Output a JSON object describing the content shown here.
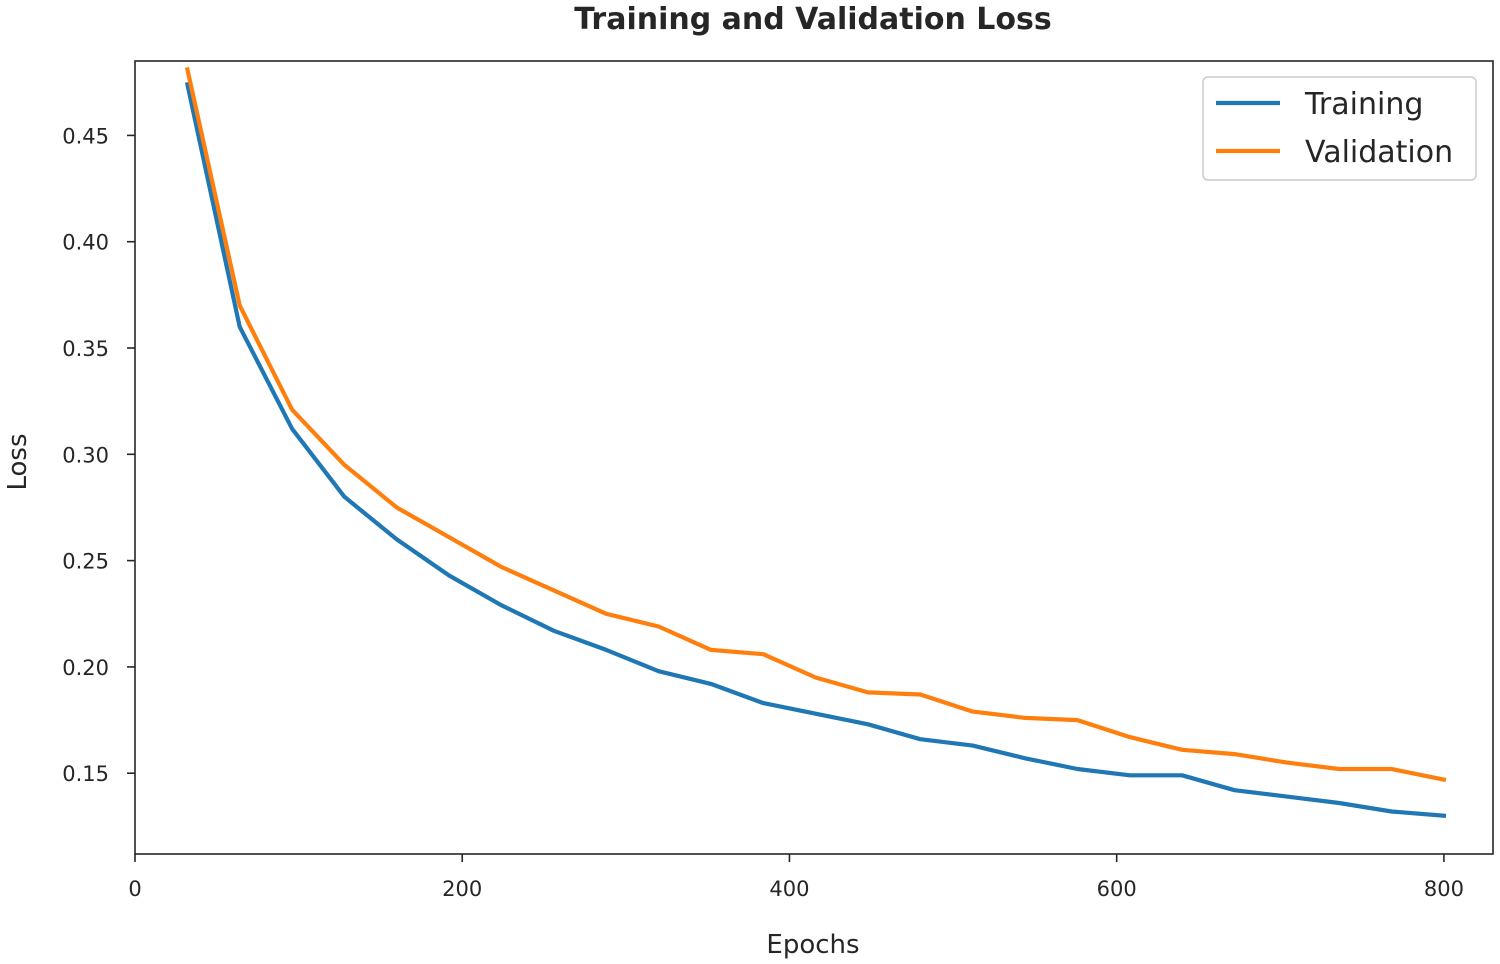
{
  "chart_data": {
    "type": "line",
    "title": "Training and Validation Loss",
    "xlabel": "Epochs",
    "ylabel": "Loss",
    "xlim": [
      0,
      830
    ],
    "ylim": [
      0.112,
      0.485
    ],
    "grid": false,
    "legend_position": "top-right",
    "x_ticks": [
      0,
      200,
      400,
      600,
      800
    ],
    "x_tick_labels": [
      "0",
      "200",
      "400",
      "600",
      "800"
    ],
    "y_ticks": [
      0.15,
      0.2,
      0.25,
      0.3,
      0.35,
      0.4,
      0.45
    ],
    "y_tick_labels": [
      "0.15",
      "0.20",
      "0.25",
      "0.30",
      "0.35",
      "0.40",
      "0.45"
    ],
    "x": [
      32,
      64,
      96,
      128,
      160,
      192,
      224,
      256,
      288,
      320,
      352,
      384,
      416,
      448,
      480,
      512,
      544,
      576,
      608,
      640,
      672,
      704,
      736,
      768,
      800
    ],
    "series": [
      {
        "name": "Training",
        "color": "#1f77b4",
        "values": [
          0.474,
          0.36,
          0.312,
          0.28,
          0.26,
          0.243,
          0.229,
          0.217,
          0.208,
          0.198,
          0.192,
          0.183,
          0.178,
          0.173,
          0.166,
          0.163,
          0.157,
          0.152,
          0.149,
          0.149,
          0.142,
          0.139,
          0.136,
          0.132,
          0.13
        ]
      },
      {
        "name": "Validation",
        "color": "#ff7f0e",
        "values": [
          0.481,
          0.37,
          0.321,
          0.295,
          0.275,
          0.261,
          0.247,
          0.236,
          0.225,
          0.219,
          0.208,
          0.206,
          0.195,
          0.188,
          0.187,
          0.179,
          0.176,
          0.175,
          0.167,
          0.161,
          0.159,
          0.155,
          0.152,
          0.152,
          0.147
        ]
      }
    ]
  }
}
